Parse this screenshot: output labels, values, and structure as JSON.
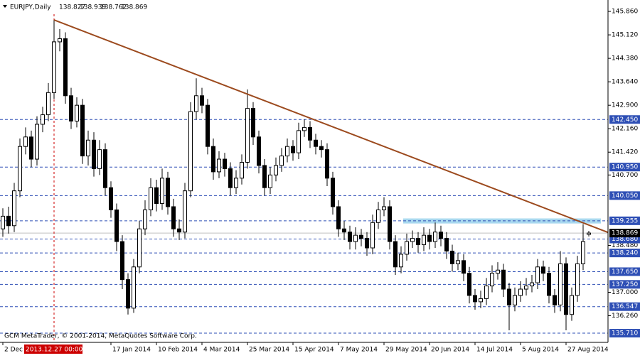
{
  "chart_data": {
    "type": "candlestick",
    "title": "EURJPY,Daily",
    "watermark": "GCM MetaTrader, © 2001-2014, MetaQuotes Software Corp.",
    "categories": [
      "2 Dec 2013",
      null,
      null,
      null,
      null,
      null,
      null,
      null,
      null,
      null,
      null,
      null,
      null,
      null,
      null,
      null,
      null,
      null,
      null,
      "17 Jan 2014",
      null,
      null,
      null,
      null,
      null,
      null,
      null,
      "10 Feb 2014",
      null,
      null,
      null,
      null,
      null,
      null,
      null,
      "4 Mar 2014",
      null,
      null,
      null,
      null,
      null,
      null,
      null,
      "25 Mar 2014",
      null,
      null,
      null,
      null,
      null,
      null,
      null,
      "15 Apr 2014",
      null,
      null,
      null,
      null,
      null,
      null,
      null,
      "7 May 2014",
      null,
      null,
      null,
      null,
      null,
      null,
      null,
      "29 May 2014",
      null,
      null,
      null,
      null,
      null,
      null,
      null,
      "20 Jun 2014",
      null,
      null,
      null,
      null,
      null,
      null,
      null,
      "14 Jul 2014",
      null,
      null,
      null,
      null,
      null,
      null,
      null,
      "5 Aug 2014",
      null,
      null,
      null,
      null,
      null,
      null,
      null,
      "27 Aug 2014",
      null,
      null,
      null,
      null
    ],
    "series": [
      {
        "name": "EURJPY",
        "color": "#000000",
        "values": [
          [
            139.0,
            139.65,
            138.75,
            139.4
          ],
          [
            139.4,
            139.7,
            138.85,
            139.1
          ],
          [
            139.1,
            140.45,
            138.9,
            140.2
          ],
          [
            140.2,
            141.85,
            140.0,
            141.6
          ],
          [
            141.6,
            142.2,
            141.35,
            141.9
          ],
          [
            141.9,
            142.1,
            140.95,
            141.2
          ],
          [
            141.2,
            142.55,
            141.0,
            142.3
          ],
          [
            142.3,
            142.85,
            142.05,
            142.6
          ],
          [
            142.6,
            143.6,
            142.4,
            143.3
          ],
          [
            143.3,
            145.59,
            143.1,
            144.9
          ],
          [
            144.9,
            145.3,
            144.6,
            145.0
          ],
          [
            145.0,
            145.2,
            142.95,
            143.2
          ],
          [
            143.2,
            143.45,
            142.15,
            142.4
          ],
          [
            142.4,
            143.15,
            142.2,
            142.9
          ],
          [
            142.9,
            143.1,
            141.05,
            141.3
          ],
          [
            141.3,
            142.1,
            141.0,
            141.8
          ],
          [
            141.8,
            142.05,
            140.65,
            140.9
          ],
          [
            140.9,
            141.8,
            140.7,
            141.5
          ],
          [
            141.5,
            141.7,
            140.05,
            140.3
          ],
          [
            140.3,
            140.5,
            139.35,
            139.6
          ],
          [
            139.6,
            139.8,
            138.3,
            138.6
          ],
          [
            138.6,
            138.8,
            137.1,
            137.4
          ],
          [
            137.4,
            137.6,
            136.3,
            136.5
          ],
          [
            136.5,
            138.05,
            136.35,
            137.8
          ],
          [
            137.8,
            139.25,
            137.6,
            139.0
          ],
          [
            139.0,
            139.9,
            138.8,
            139.6
          ],
          [
            139.6,
            140.6,
            139.4,
            140.3
          ],
          [
            140.3,
            140.55,
            139.55,
            139.8
          ],
          [
            139.8,
            140.9,
            139.6,
            140.6
          ],
          [
            140.6,
            140.8,
            139.45,
            139.7
          ],
          [
            139.7,
            139.95,
            138.75,
            139.0
          ],
          [
            139.0,
            139.3,
            138.65,
            138.9
          ],
          [
            138.9,
            140.45,
            138.7,
            140.2
          ],
          [
            140.2,
            143.0,
            140.0,
            142.7
          ],
          [
            142.7,
            143.75,
            142.45,
            143.2
          ],
          [
            143.2,
            143.45,
            142.65,
            142.9
          ],
          [
            142.9,
            143.1,
            141.35,
            141.6
          ],
          [
            141.6,
            141.85,
            140.55,
            140.8
          ],
          [
            140.8,
            141.45,
            140.6,
            141.2
          ],
          [
            141.2,
            141.4,
            140.65,
            140.9
          ],
          [
            140.9,
            141.1,
            140.05,
            140.3
          ],
          [
            140.3,
            140.85,
            140.1,
            140.6
          ],
          [
            140.6,
            141.35,
            140.4,
            141.1
          ],
          [
            141.1,
            143.4,
            140.9,
            142.8
          ],
          [
            142.8,
            143.0,
            141.65,
            141.9
          ],
          [
            141.9,
            142.1,
            140.75,
            141.0
          ],
          [
            141.0,
            141.2,
            140.05,
            140.3
          ],
          [
            140.3,
            140.95,
            140.1,
            140.7
          ],
          [
            140.7,
            141.25,
            140.5,
            141.0
          ],
          [
            141.0,
            141.55,
            140.8,
            141.3
          ],
          [
            141.3,
            141.85,
            141.1,
            141.6
          ],
          [
            141.6,
            141.8,
            141.15,
            141.4
          ],
          [
            141.4,
            142.35,
            141.2,
            142.1
          ],
          [
            142.1,
            142.45,
            141.9,
            142.2
          ],
          [
            142.2,
            142.4,
            141.55,
            141.8
          ],
          [
            141.8,
            142.0,
            141.35,
            141.6
          ],
          [
            141.6,
            141.8,
            141.25,
            141.5
          ],
          [
            141.5,
            141.7,
            140.35,
            140.6
          ],
          [
            140.6,
            140.8,
            139.45,
            139.7
          ],
          [
            139.7,
            139.9,
            138.75,
            139.0
          ],
          [
            139.0,
            139.25,
            138.65,
            138.9
          ],
          [
            138.9,
            139.1,
            138.35,
            138.6
          ],
          [
            138.6,
            139.05,
            138.35,
            138.8
          ],
          [
            138.8,
            139.0,
            138.45,
            138.7
          ],
          [
            138.7,
            138.9,
            138.15,
            138.4
          ],
          [
            138.4,
            139.45,
            138.2,
            139.2
          ],
          [
            139.2,
            139.85,
            139.0,
            139.6
          ],
          [
            139.6,
            140.0,
            139.4,
            139.7
          ],
          [
            139.7,
            139.9,
            138.35,
            138.6
          ],
          [
            138.6,
            138.8,
            137.55,
            137.8
          ],
          [
            137.8,
            138.45,
            137.6,
            138.2
          ],
          [
            138.2,
            138.85,
            138.0,
            138.6
          ],
          [
            138.6,
            138.95,
            138.4,
            138.7
          ],
          [
            138.7,
            138.9,
            138.25,
            138.5
          ],
          [
            138.5,
            139.05,
            138.3,
            138.8
          ],
          [
            138.8,
            139.0,
            138.35,
            138.6
          ],
          [
            138.6,
            139.2,
            138.4,
            138.9
          ],
          [
            138.9,
            139.1,
            138.45,
            138.7
          ],
          [
            138.7,
            138.9,
            138.05,
            138.3
          ],
          [
            138.3,
            138.5,
            137.65,
            137.9
          ],
          [
            137.9,
            138.25,
            137.7,
            138.0
          ],
          [
            138.0,
            138.2,
            137.35,
            137.6
          ],
          [
            137.6,
            137.8,
            136.65,
            136.9
          ],
          [
            136.9,
            137.1,
            136.45,
            136.7
          ],
          [
            136.7,
            137.05,
            136.5,
            136.8
          ],
          [
            136.8,
            137.45,
            136.6,
            137.2
          ],
          [
            137.2,
            137.85,
            137.0,
            137.6
          ],
          [
            137.6,
            137.95,
            137.4,
            137.7
          ],
          [
            137.7,
            137.9,
            136.85,
            137.1
          ],
          [
            137.1,
            137.3,
            135.8,
            136.6
          ],
          [
            136.6,
            137.15,
            136.4,
            136.9
          ],
          [
            136.9,
            137.35,
            136.7,
            137.1
          ],
          [
            137.1,
            137.45,
            136.9,
            137.2
          ],
          [
            137.2,
            137.55,
            137.0,
            137.3
          ],
          [
            137.3,
            138.05,
            137.1,
            137.8
          ],
          [
            137.8,
            138.0,
            137.35,
            137.6
          ],
          [
            137.6,
            137.8,
            136.65,
            136.9
          ],
          [
            136.9,
            137.1,
            136.35,
            136.6
          ],
          [
            136.6,
            138.3,
            136.4,
            137.9
          ],
          [
            137.9,
            138.1,
            135.8,
            136.3
          ],
          [
            136.3,
            137.15,
            136.1,
            136.9
          ],
          [
            136.9,
            138.15,
            136.7,
            137.9
          ],
          [
            137.9,
            139.15,
            137.7,
            138.6
          ],
          [
            138.827,
            138.939,
            138.762,
            138.869
          ]
        ]
      }
    ],
    "ylim": [
      135.42,
      146.22
    ],
    "yticks": [
      {
        "value": 145.86,
        "label": "145.860"
      },
      {
        "value": 145.12,
        "label": "145.120"
      },
      {
        "value": 144.38,
        "label": "144.380"
      },
      {
        "value": 143.64,
        "label": "143.640"
      },
      {
        "value": 142.9,
        "label": "142.900"
      },
      {
        "value": 142.16,
        "label": "142.160"
      },
      {
        "value": 141.42,
        "label": "141.420"
      },
      {
        "value": 140.7,
        "label": "140.700"
      },
      {
        "value": 138.48,
        "label": "138.480"
      },
      {
        "value": 137,
        "label": "137.000"
      },
      {
        "value": 136.26,
        "label": "136.260"
      }
    ],
    "levels": {
      "color": "#2e4fb5",
      "values": [
        142.45,
        140.95,
        140.05,
        139.255,
        138.68,
        138.24,
        137.65,
        137.25,
        136.547,
        135.71
      ],
      "value_labels": [
        "142.450",
        "140.950",
        "140.050",
        "139.255",
        "138.680",
        "138.240",
        "137.650",
        "137.250",
        "136.547",
        "135.710"
      ]
    },
    "zone": {
      "color": "#a8d8ef",
      "values": [
        139.17,
        139.33
      ]
    },
    "trendline": {
      "color": "#9c4a1e",
      "values": [
        145.59,
        138.89
      ]
    },
    "crosshair": {
      "color": "#cc0000",
      "label": "2013.12.27 00:00"
    }
  }
}
